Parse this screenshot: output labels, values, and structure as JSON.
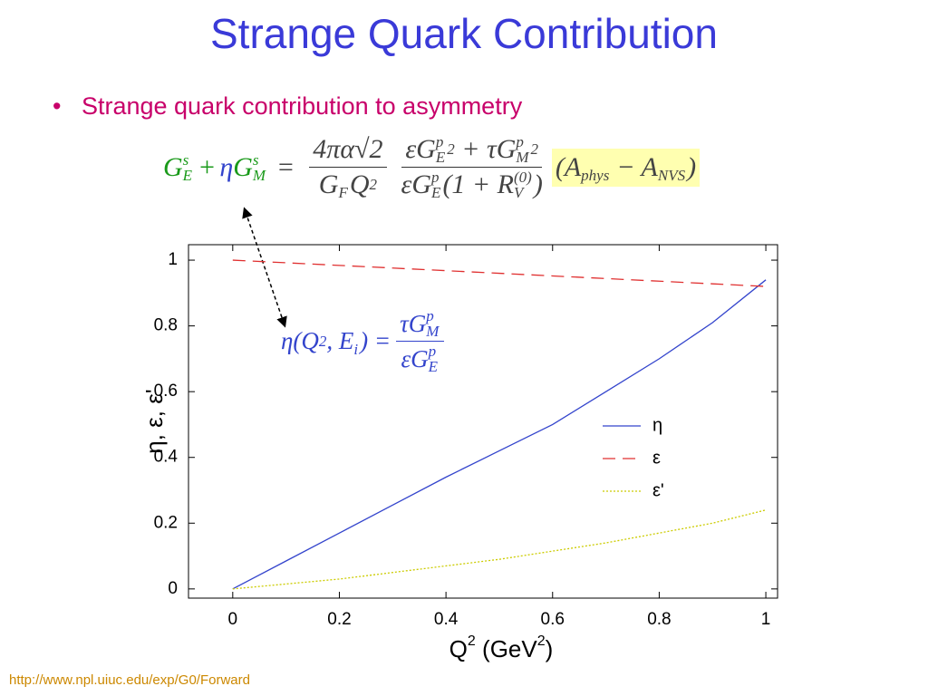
{
  "slide": {
    "title": "Strange Quark Contribution",
    "bullet": "Strange quark contribution to asymmetry",
    "equation1": {
      "lhs": [
        "G",
        "s",
        "E",
        "+",
        "η",
        "G",
        "s",
        "M",
        "="
      ],
      "frac1_num": "4πα√2",
      "frac1_den": [
        "G",
        "F",
        "Q",
        "2"
      ],
      "frac2_num": [
        "εG",
        "p",
        "E",
        "2",
        "+ τG",
        "p",
        "M",
        "2"
      ],
      "frac2_den": [
        "εG",
        "p",
        "E",
        "(1 + R",
        "(0)",
        "V",
        ")"
      ],
      "asym": [
        "(A",
        "phys",
        "− A",
        "NVS",
        ")"
      ]
    },
    "equation2": {
      "lhs": [
        "η(Q",
        "2",
        ", E",
        "i",
        ") ="
      ],
      "num": [
        "τG",
        "p",
        "M"
      ],
      "den": [
        "εG",
        "p",
        "E"
      ]
    },
    "url": "http://www.npl.uiuc.edu/exp/G0/Forward"
  },
  "chart_data": {
    "type": "line",
    "xlabel": [
      "Q",
      "2",
      " (GeV",
      "2",
      ")"
    ],
    "ylabel": "η, ε, ε'",
    "x": [
      0,
      0.1,
      0.2,
      0.3,
      0.4,
      0.5,
      0.6,
      0.7,
      0.8,
      0.9,
      1
    ],
    "series": [
      {
        "name": "η",
        "color": "#3344cc",
        "dash": "solid",
        "values": [
          0,
          0.085,
          0.17,
          0.255,
          0.34,
          0.42,
          0.5,
          0.6,
          0.7,
          0.81,
          0.94
        ]
      },
      {
        "name": "ε",
        "color": "#e03030",
        "dash": "dashed",
        "values": [
          1,
          0.992,
          0.984,
          0.976,
          0.968,
          0.96,
          0.952,
          0.944,
          0.936,
          0.928,
          0.92
        ]
      },
      {
        "name": "ε'",
        "color": "#cccc00",
        "dash": "dotted",
        "values": [
          0,
          0.015,
          0.03,
          0.05,
          0.07,
          0.09,
          0.115,
          0.14,
          0.17,
          0.2,
          0.24
        ]
      }
    ],
    "xlim": [
      -0.083,
      1.022
    ],
    "ylim": [
      -0.028,
      1.047
    ],
    "xticks": [
      0,
      0.2,
      0.4,
      0.6,
      0.8,
      1
    ],
    "yticks": [
      0,
      0.2,
      0.4,
      0.6,
      0.8,
      1
    ],
    "legend": "center right"
  }
}
